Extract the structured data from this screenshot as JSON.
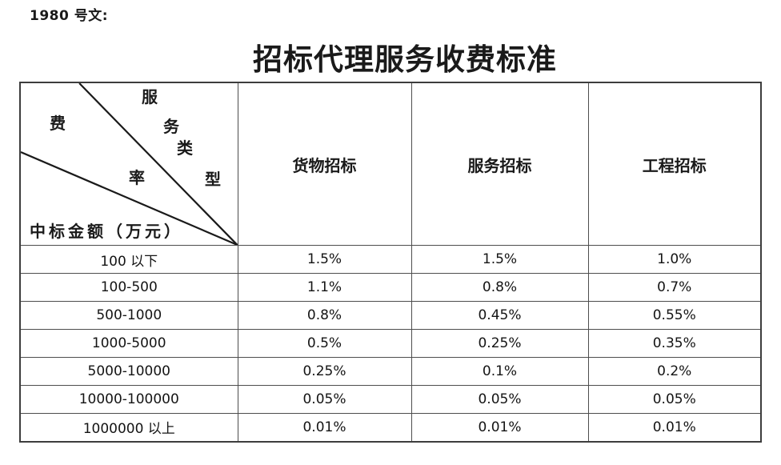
{
  "doc_ref": "1980 号文:",
  "title": "招标代理服务收费标准",
  "table": {
    "corner": {
      "rate_chars": [
        "费",
        "率"
      ],
      "service_chars": [
        "服",
        "务",
        "类",
        "型"
      ],
      "amount_label": "中标金额（万元）"
    },
    "columns": [
      "货物招标",
      "服务招标",
      "工程招标"
    ],
    "rows": [
      {
        "range": "100 以下",
        "values": [
          "1.5%",
          "1.5%",
          "1.0%"
        ]
      },
      {
        "range": "100-500",
        "values": [
          "1.1%",
          "0.8%",
          "0.7%"
        ]
      },
      {
        "range": "500-1000",
        "values": [
          "0.8%",
          "0.45%",
          "0.55%"
        ]
      },
      {
        "range": "1000-5000",
        "values": [
          "0.5%",
          "0.25%",
          "0.35%"
        ]
      },
      {
        "range": "5000-10000",
        "values": [
          "0.25%",
          "0.1%",
          "0.2%"
        ]
      },
      {
        "range": "10000-100000",
        "values": [
          "0.05%",
          "0.05%",
          "0.05%"
        ]
      },
      {
        "range": "1000000 以上",
        "values": [
          "0.01%",
          "0.01%",
          "0.01%"
        ]
      }
    ],
    "line_color": "#1a1a1a"
  }
}
